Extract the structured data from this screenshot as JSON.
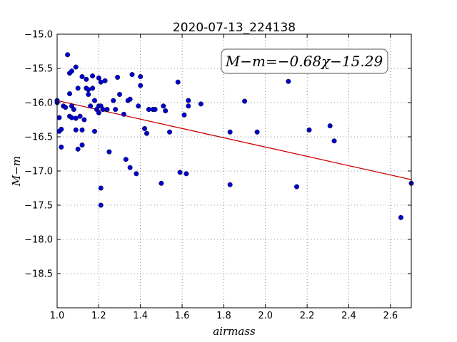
{
  "chart_data": {
    "type": "scatter",
    "title": "2020-07-13_224138",
    "xlabel": "airmass",
    "ylabel": "M−m",
    "xlim": [
      1.0,
      2.7
    ],
    "ylim": [
      -19.0,
      -15.0
    ],
    "y_inverted": true,
    "x_ticks": [
      1.0,
      1.2,
      1.4,
      1.6,
      1.8,
      2.0,
      2.2,
      2.4,
      2.6
    ],
    "x_tick_labels": [
      "1.0",
      "1.2",
      "1.4",
      "1.6",
      "1.8",
      "2.0",
      "2.2",
      "2.4",
      "2.6"
    ],
    "y_ticks": [
      -15.0,
      -15.5,
      -16.0,
      -16.5,
      -17.0,
      -17.5,
      -18.0,
      -18.5
    ],
    "y_tick_labels": [
      "−15.0",
      "−15.5",
      "−16.0",
      "−16.5",
      "−17.0",
      "−17.5",
      "−18.0",
      "−18.5"
    ],
    "grid": true,
    "annotation": "M−m=−0.68χ−15.29",
    "fit": {
      "slope": -0.68,
      "intercept": -15.29,
      "color": "#cc0000"
    },
    "point_color": "#0000cc",
    "points": [
      [
        1.0,
        -15.97
      ],
      [
        1.0,
        -16.0
      ],
      [
        1.01,
        -16.22
      ],
      [
        1.01,
        -16.42
      ],
      [
        1.02,
        -16.39
      ],
      [
        1.02,
        -16.65
      ],
      [
        1.03,
        -16.05
      ],
      [
        1.04,
        -16.07
      ],
      [
        1.05,
        -15.3
      ],
      [
        1.06,
        -15.57
      ],
      [
        1.06,
        -15.87
      ],
      [
        1.06,
        -16.2
      ],
      [
        1.07,
        -15.54
      ],
      [
        1.07,
        -16.05
      ],
      [
        1.07,
        -16.22
      ],
      [
        1.08,
        -16.1
      ],
      [
        1.09,
        -15.48
      ],
      [
        1.09,
        -16.4
      ],
      [
        1.09,
        -16.23
      ],
      [
        1.1,
        -15.79
      ],
      [
        1.1,
        -16.68
      ],
      [
        1.11,
        -16.2
      ],
      [
        1.12,
        -16.4
      ],
      [
        1.12,
        -16.62
      ],
      [
        1.12,
        -15.62
      ],
      [
        1.13,
        -16.25
      ],
      [
        1.14,
        -15.66
      ],
      [
        1.14,
        -15.79
      ],
      [
        1.15,
        -15.81
      ],
      [
        1.15,
        -15.88
      ],
      [
        1.16,
        -16.05
      ],
      [
        1.17,
        -15.79
      ],
      [
        1.17,
        -15.61
      ],
      [
        1.18,
        -16.42
      ],
      [
        1.18,
        -15.97
      ],
      [
        1.19,
        -16.1
      ],
      [
        1.2,
        -15.64
      ],
      [
        1.2,
        -16.05
      ],
      [
        1.2,
        -16.15
      ],
      [
        1.21,
        -16.05
      ],
      [
        1.21,
        -15.7
      ],
      [
        1.21,
        -17.25
      ],
      [
        1.21,
        -17.5
      ],
      [
        1.22,
        -16.1
      ],
      [
        1.23,
        -15.68
      ],
      [
        1.24,
        -16.1
      ],
      [
        1.25,
        -16.72
      ],
      [
        1.27,
        -15.97
      ],
      [
        1.28,
        -16.1
      ],
      [
        1.29,
        -15.63
      ],
      [
        1.3,
        -15.88
      ],
      [
        1.32,
        -16.17
      ],
      [
        1.33,
        -16.83
      ],
      [
        1.34,
        -15.97
      ],
      [
        1.35,
        -16.95
      ],
      [
        1.35,
        -15.95
      ],
      [
        1.36,
        -15.59
      ],
      [
        1.38,
        -17.04
      ],
      [
        1.39,
        -16.05
      ],
      [
        1.4,
        -15.75
      ],
      [
        1.4,
        -15.62
      ],
      [
        1.42,
        -16.38
      ],
      [
        1.43,
        -16.45
      ],
      [
        1.44,
        -16.1
      ],
      [
        1.46,
        -16.1
      ],
      [
        1.47,
        -16.1
      ],
      [
        1.5,
        -17.18
      ],
      [
        1.51,
        -16.05
      ],
      [
        1.52,
        -16.12
      ],
      [
        1.54,
        -16.43
      ],
      [
        1.58,
        -15.7
      ],
      [
        1.59,
        -17.02
      ],
      [
        1.61,
        -16.18
      ],
      [
        1.62,
        -17.04
      ],
      [
        1.63,
        -15.97
      ],
      [
        1.63,
        -16.05
      ],
      [
        1.69,
        -16.02
      ],
      [
        1.83,
        -16.43
      ],
      [
        1.83,
        -17.2
      ],
      [
        1.9,
        -15.98
      ],
      [
        1.96,
        -16.43
      ],
      [
        2.11,
        -15.69
      ],
      [
        2.15,
        -17.23
      ],
      [
        2.21,
        -16.4
      ],
      [
        2.31,
        -16.34
      ],
      [
        2.33,
        -16.56
      ],
      [
        2.65,
        -17.68
      ],
      [
        2.7,
        -17.18
      ]
    ]
  }
}
